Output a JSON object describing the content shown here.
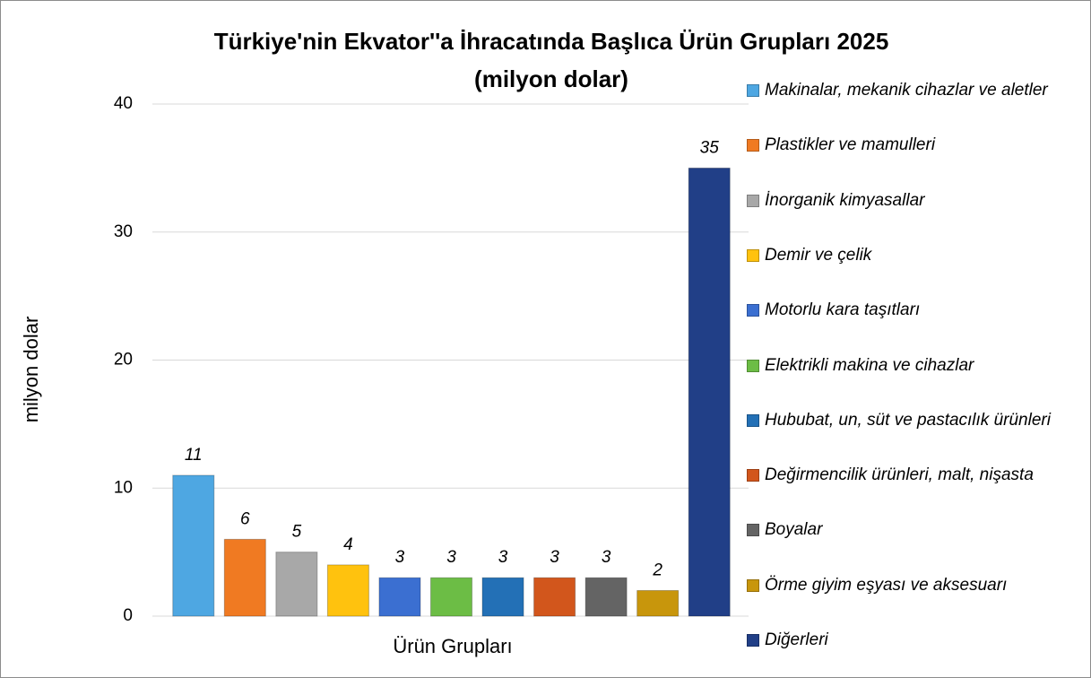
{
  "chart_data": {
    "type": "bar",
    "title": "Türkiye'nin Ekvator''a İhracatında Başlıca Ürün Grupları 2025",
    "subtitle": "(milyon dolar)",
    "x_label": "Ürün Grupları",
    "y_label": "milyon dolar",
    "categories": [
      "Makinalar, mekanik cihazlar ve aletler",
      "Plastikler ve mamulleri",
      "İnorganik kimyasallar",
      "Demir ve çelik",
      "Motorlu kara taşıtları",
      "Elektrikli makina ve cihazlar",
      "Hububat, un, süt ve pastacılık ürünleri",
      "Değirmencilik ürünleri, malt, nişasta",
      "Boyalar",
      "Örme giyim eşyası ve aksesuarı",
      "Diğerleri"
    ],
    "values": [
      11,
      6,
      5,
      4,
      3,
      3,
      3,
      3,
      3,
      2,
      35
    ],
    "colors": [
      "#4ea7e2",
      "#f07a22",
      "#a8a8a8",
      "#ffc20e",
      "#3b6fd1",
      "#6cbd45",
      "#2370b6",
      "#d2561c",
      "#646464",
      "#c8960c",
      "#213f87"
    ],
    "ylim": [
      0,
      40
    ],
    "yticks": [
      0,
      10,
      20,
      30,
      40
    ],
    "grid": true,
    "legend": "right"
  }
}
